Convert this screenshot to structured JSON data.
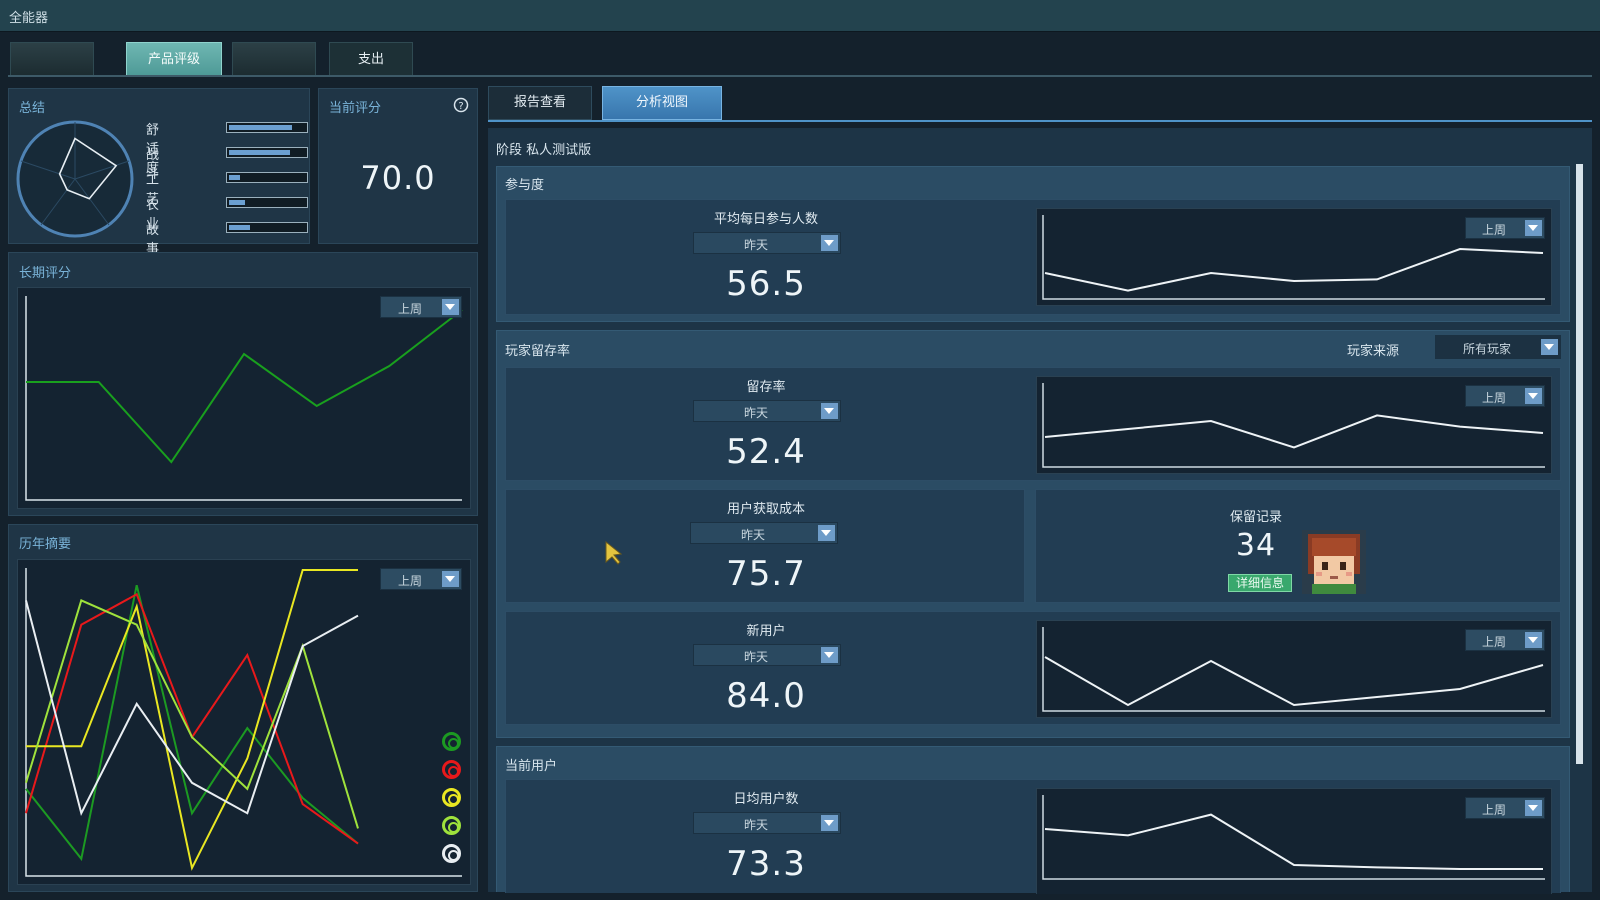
{
  "window": {
    "title": "全能器"
  },
  "top_tabs": [
    {
      "label": ""
    },
    {
      "label": "产品评级"
    },
    {
      "label": ""
    },
    {
      "label": "支出"
    }
  ],
  "summary": {
    "title": "总结",
    "bars": [
      {
        "label": "舒适度",
        "value": 0.85
      },
      {
        "label": "战斗",
        "value": 0.82
      },
      {
        "label": "工艺",
        "value": 0.15
      },
      {
        "label": "农业",
        "value": 0.22
      },
      {
        "label": "故事情节",
        "value": 0.28
      }
    ]
  },
  "current_score": {
    "title": "当前评分",
    "value": "70.0",
    "help_icon": "help-icon"
  },
  "long_term": {
    "title": "长期评分",
    "dropdown": "上周",
    "color": "#19a01e",
    "series": [
      0.58,
      0.58,
      0.18,
      0.72,
      0.46,
      0.66,
      0.94
    ]
  },
  "history": {
    "title": "历年摘要",
    "dropdown": "上周",
    "series": [
      {
        "color": "#1c9a22",
        "values": [
          0.28,
          0.05,
          0.95,
          0.2,
          0.48,
          0.25,
          0.1
        ]
      },
      {
        "color": "#e8191b",
        "values": [
          0.2,
          0.82,
          0.92,
          0.45,
          0.72,
          0.23,
          0.1
        ]
      },
      {
        "color": "#e9e722",
        "values": [
          0.42,
          0.42,
          0.88,
          0.02,
          0.38,
          1.0,
          1.0
        ]
      },
      {
        "color": "#9fe23c",
        "values": [
          0.3,
          0.9,
          0.82,
          0.45,
          0.28,
          0.75,
          0.15
        ]
      },
      {
        "color": "#e9eef2",
        "values": [
          0.9,
          0.2,
          0.56,
          0.3,
          0.2,
          0.75,
          0.85
        ]
      }
    ],
    "legend_colors": [
      "#1c9a22",
      "#e8191b",
      "#e9e722",
      "#9fe23c",
      "#e9eef2"
    ]
  },
  "right_tabs": [
    {
      "label": "报告查看"
    },
    {
      "label": "分析视图"
    }
  ],
  "stage": {
    "label": "阶段",
    "value": "私人测试版"
  },
  "engagement": {
    "title": "参与度",
    "metric_label": "平均每日参与人数",
    "period": "昨天",
    "value": "56.5",
    "chart_dropdown": "上周",
    "series": [
      0.3,
      0.08,
      0.3,
      0.2,
      0.22,
      0.6,
      0.55
    ]
  },
  "retention": {
    "title": "玩家留存率",
    "source_label": "玩家来源",
    "source_value": "所有玩家",
    "rate": {
      "label": "留存率",
      "period": "昨天",
      "value": "52.4",
      "chart_dropdown": "上周",
      "series": [
        0.35,
        0.45,
        0.55,
        0.22,
        0.62,
        0.48,
        0.4
      ]
    },
    "acquisition": {
      "label": "用户获取成本",
      "period": "昨天",
      "value": "75.7"
    },
    "records": {
      "label": "保留记录",
      "value": "34",
      "button": "详细信息"
    },
    "new_users": {
      "label": "新用户",
      "period": "昨天",
      "value": "84.0",
      "chart_dropdown": "上周",
      "series": [
        0.65,
        0.05,
        0.6,
        0.05,
        0.15,
        0.25,
        0.55
      ]
    }
  },
  "current_users": {
    "title": "当前用户",
    "metric_label": "日均用户数",
    "period": "昨天",
    "value": "73.3",
    "chart_dropdown": "上周",
    "series": [
      0.6,
      0.52,
      0.78,
      0.15,
      0.12,
      0.1,
      0.1
    ]
  }
}
